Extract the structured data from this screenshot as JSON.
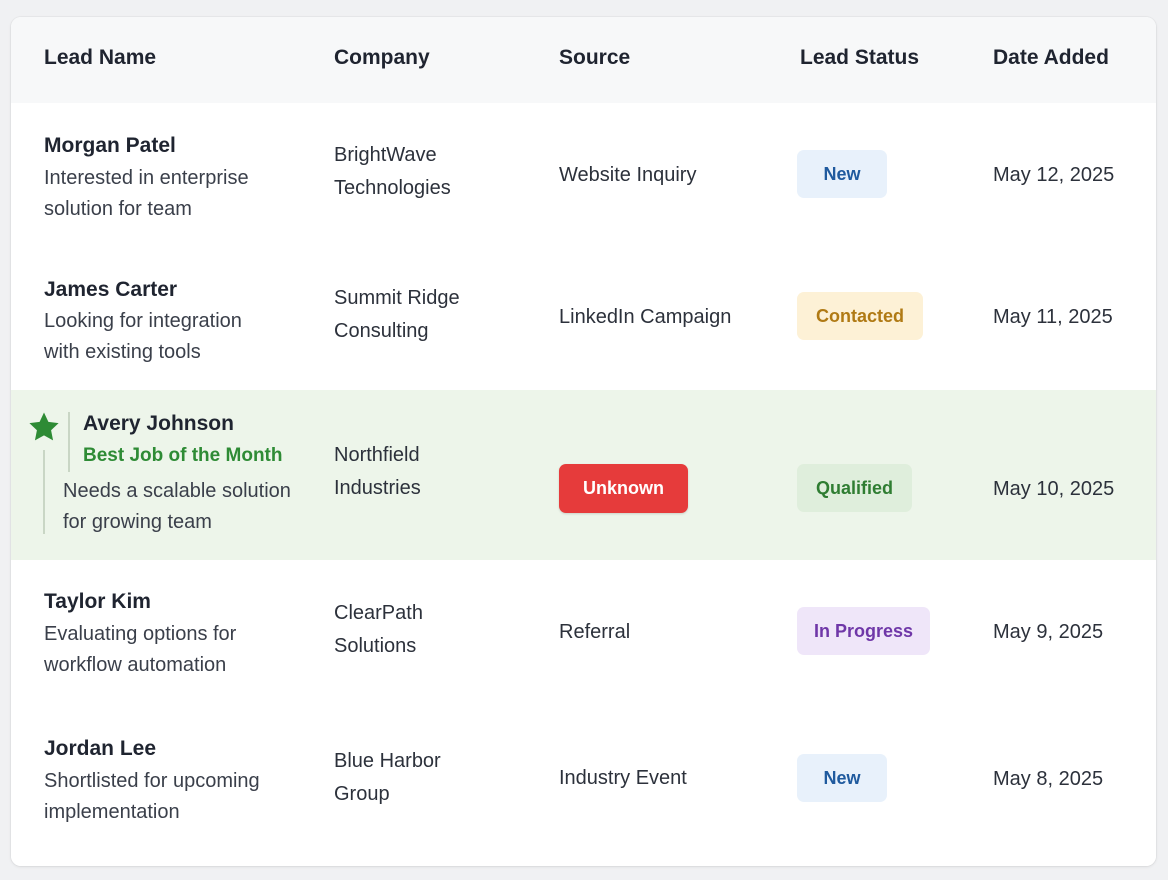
{
  "columns": {
    "lead_name": "Lead Name",
    "company": "Company",
    "source": "Source",
    "lead_status": "Lead Status",
    "date_added": "Date Added"
  },
  "rows": [
    {
      "name": "Morgan Patel",
      "desc_line1": "Interested in enterprise",
      "desc_line2": "solution for team",
      "company_line1": "BrightWave",
      "company_line2": "Technologies",
      "source": "Website Inquiry",
      "status": "New",
      "date": "May 12, 2025"
    },
    {
      "name": "James Carter",
      "desc_line1": "Looking for integration",
      "desc_line2": "with existing tools",
      "company_line1": "Summit Ridge",
      "company_line2": "Consulting",
      "source": "LinkedIn Campaign",
      "status": "Contacted",
      "date": "May 11, 2025"
    },
    {
      "name": "Avery Johnson",
      "highlight_label": "Best Job of the Month",
      "desc_line1": "Needs a scalable solution",
      "desc_line2": "for growing team",
      "company_line1": "Northfield",
      "company_line2": "Industries",
      "source": "Unknown",
      "status": "Qualified",
      "date": "May 10, 2025"
    },
    {
      "name": "Taylor Kim",
      "desc_line1": "Evaluating options for",
      "desc_line2": "workflow automation",
      "company_line1": "ClearPath",
      "company_line2": "Solutions",
      "source": "Referral",
      "status": "In Progress",
      "date": "May 9, 2025"
    },
    {
      "name": "Jordan Lee",
      "desc_line1": "Shortlisted for upcoming",
      "desc_line2": "implementation",
      "company_line1": "Blue Harbor",
      "company_line2": "Group",
      "source": "Industry Event",
      "status": "New",
      "date": "May 8, 2025"
    }
  ],
  "icons": {
    "featured": "star-icon"
  },
  "colors": {
    "featured_row_bg": "#edf5ea",
    "featured_accent": "#2e8b35",
    "unknown_badge": "#e63b3b",
    "status_new": "#1f5a9e",
    "status_contacted": "#b07a14",
    "status_qualified": "#2f7d32",
    "status_in_progress": "#6f37a8"
  }
}
